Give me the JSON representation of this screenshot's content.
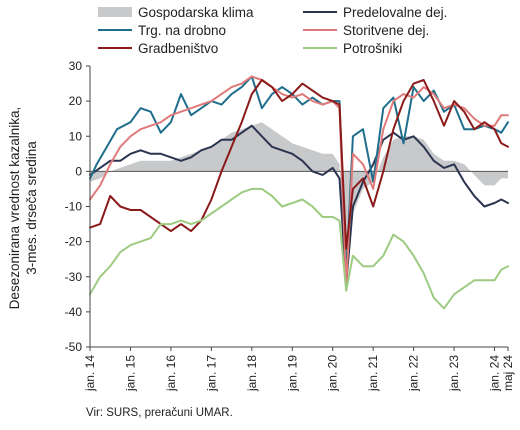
{
  "chart_data": {
    "type": "line",
    "ylabel": [
      "Desezonirana vrednost kazalnika,",
      "3-mes. drseča sredina"
    ],
    "ylim": [
      -50,
      30
    ],
    "yticks": [
      30,
      20,
      10,
      0,
      -10,
      -20,
      -30,
      -40,
      -50
    ],
    "xlim": [
      "2014-01",
      "2024-05"
    ],
    "xticks": [
      {
        "date": "2014-01",
        "label": "jan. 14"
      },
      {
        "date": "2015-01",
        "label": "jan. 15"
      },
      {
        "date": "2016-01",
        "label": "jan. 16"
      },
      {
        "date": "2017-01",
        "label": "jan. 17"
      },
      {
        "date": "2018-01",
        "label": "jan. 18"
      },
      {
        "date": "2019-01",
        "label": "jan. 19"
      },
      {
        "date": "2020-01",
        "label": "jan. 20"
      },
      {
        "date": "2021-01",
        "label": "jan. 21"
      },
      {
        "date": "2022-01",
        "label": "jan. 22"
      },
      {
        "date": "2023-01",
        "label": "jan. 23"
      },
      {
        "date": "2024-01",
        "label": "jan. 24"
      },
      {
        "date": "2024-05",
        "label": "maj 24"
      }
    ],
    "grid": false,
    "legend_position": "top",
    "source": "Vir: SURS, preračuni UMAR.",
    "series": [
      {
        "name": "Gospodarska klima",
        "kind": "area",
        "color": "#c8c9cb",
        "points": [
          [
            "2014-01",
            -3
          ],
          [
            "2014-04",
            -2
          ],
          [
            "2014-07",
            0
          ],
          [
            "2014-10",
            1
          ],
          [
            "2015-01",
            2
          ],
          [
            "2015-04",
            3
          ],
          [
            "2015-07",
            3
          ],
          [
            "2015-10",
            3
          ],
          [
            "2016-01",
            3
          ],
          [
            "2016-04",
            4
          ],
          [
            "2016-07",
            5
          ],
          [
            "2016-10",
            6
          ],
          [
            "2017-01",
            7
          ],
          [
            "2017-04",
            9
          ],
          [
            "2017-07",
            11
          ],
          [
            "2017-10",
            12
          ],
          [
            "2018-01",
            13
          ],
          [
            "2018-04",
            14
          ],
          [
            "2018-07",
            12
          ],
          [
            "2018-10",
            10
          ],
          [
            "2019-01",
            8
          ],
          [
            "2019-04",
            7
          ],
          [
            "2019-07",
            6
          ],
          [
            "2019-10",
            5
          ],
          [
            "2020-01",
            5
          ],
          [
            "2020-03",
            2
          ],
          [
            "2020-05",
            -28
          ],
          [
            "2020-07",
            -12
          ],
          [
            "2020-10",
            -5
          ],
          [
            "2021-01",
            -3
          ],
          [
            "2021-04",
            4
          ],
          [
            "2021-07",
            9
          ],
          [
            "2021-10",
            10
          ],
          [
            "2022-01",
            10
          ],
          [
            "2022-04",
            9
          ],
          [
            "2022-07",
            5
          ],
          [
            "2022-10",
            3
          ],
          [
            "2023-01",
            3
          ],
          [
            "2023-04",
            2
          ],
          [
            "2023-07",
            -1
          ],
          [
            "2023-10",
            -4
          ],
          [
            "2024-01",
            -4
          ],
          [
            "2024-03",
            -2
          ],
          [
            "2024-05",
            -2
          ]
        ]
      },
      {
        "name": "Predelovalne dej.",
        "kind": "line",
        "color": "#2b3550",
        "points": [
          [
            "2014-01",
            -1
          ],
          [
            "2014-04",
            1
          ],
          [
            "2014-07",
            3
          ],
          [
            "2014-10",
            3
          ],
          [
            "2015-01",
            5
          ],
          [
            "2015-04",
            6
          ],
          [
            "2015-07",
            5
          ],
          [
            "2015-10",
            5
          ],
          [
            "2016-01",
            4
          ],
          [
            "2016-04",
            3
          ],
          [
            "2016-07",
            4
          ],
          [
            "2016-10",
            6
          ],
          [
            "2017-01",
            7
          ],
          [
            "2017-04",
            9
          ],
          [
            "2017-07",
            9
          ],
          [
            "2017-10",
            11
          ],
          [
            "2018-01",
            13
          ],
          [
            "2018-04",
            10
          ],
          [
            "2018-07",
            7
          ],
          [
            "2018-10",
            6
          ],
          [
            "2019-01",
            5
          ],
          [
            "2019-04",
            3
          ],
          [
            "2019-07",
            0
          ],
          [
            "2019-10",
            -1
          ],
          [
            "2020-01",
            1
          ],
          [
            "2020-03",
            -2
          ],
          [
            "2020-05",
            -32
          ],
          [
            "2020-07",
            -10
          ],
          [
            "2020-10",
            -3
          ],
          [
            "2021-01",
            2
          ],
          [
            "2021-04",
            9
          ],
          [
            "2021-07",
            11
          ],
          [
            "2021-10",
            9
          ],
          [
            "2022-01",
            10
          ],
          [
            "2022-04",
            7
          ],
          [
            "2022-07",
            3
          ],
          [
            "2022-10",
            1
          ],
          [
            "2023-01",
            2
          ],
          [
            "2023-04",
            -3
          ],
          [
            "2023-07",
            -7
          ],
          [
            "2023-10",
            -10
          ],
          [
            "2024-01",
            -9
          ],
          [
            "2024-03",
            -8
          ],
          [
            "2024-05",
            -9
          ]
        ]
      },
      {
        "name": "Trg. na drobno",
        "kind": "line",
        "color": "#1f6e8c",
        "points": [
          [
            "2014-01",
            -2
          ],
          [
            "2014-03",
            2
          ],
          [
            "2014-06",
            7
          ],
          [
            "2014-09",
            12
          ],
          [
            "2015-01",
            14
          ],
          [
            "2015-04",
            18
          ],
          [
            "2015-07",
            17
          ],
          [
            "2015-10",
            11
          ],
          [
            "2016-01",
            14
          ],
          [
            "2016-04",
            22
          ],
          [
            "2016-07",
            16
          ],
          [
            "2016-10",
            18
          ],
          [
            "2017-01",
            20
          ],
          [
            "2017-04",
            19
          ],
          [
            "2017-07",
            22
          ],
          [
            "2017-10",
            24
          ],
          [
            "2018-01",
            27
          ],
          [
            "2018-04",
            18
          ],
          [
            "2018-07",
            22
          ],
          [
            "2018-10",
            24
          ],
          [
            "2019-01",
            22
          ],
          [
            "2019-04",
            19
          ],
          [
            "2019-07",
            21
          ],
          [
            "2019-10",
            19
          ],
          [
            "2020-01",
            20
          ],
          [
            "2020-03",
            20
          ],
          [
            "2020-05",
            -30
          ],
          [
            "2020-07",
            10
          ],
          [
            "2020-10",
            12
          ],
          [
            "2021-01",
            -3
          ],
          [
            "2021-04",
            18
          ],
          [
            "2021-07",
            21
          ],
          [
            "2021-10",
            8
          ],
          [
            "2022-01",
            24
          ],
          [
            "2022-04",
            20
          ],
          [
            "2022-07",
            23
          ],
          [
            "2022-10",
            17
          ],
          [
            "2023-01",
            19
          ],
          [
            "2023-04",
            12
          ],
          [
            "2023-07",
            12
          ],
          [
            "2023-10",
            13
          ],
          [
            "2024-01",
            12
          ],
          [
            "2024-03",
            11
          ],
          [
            "2024-05",
            14
          ]
        ]
      },
      {
        "name": "Storitvene dej.",
        "kind": "line",
        "color": "#e07a7a",
        "points": [
          [
            "2014-01",
            -8
          ],
          [
            "2014-04",
            -4
          ],
          [
            "2014-07",
            2
          ],
          [
            "2014-10",
            7
          ],
          [
            "2015-01",
            10
          ],
          [
            "2015-04",
            12
          ],
          [
            "2015-07",
            13
          ],
          [
            "2015-10",
            14
          ],
          [
            "2016-01",
            16
          ],
          [
            "2016-04",
            17
          ],
          [
            "2016-07",
            18
          ],
          [
            "2016-10",
            19
          ],
          [
            "2017-01",
            20
          ],
          [
            "2017-04",
            22
          ],
          [
            "2017-07",
            24
          ],
          [
            "2017-10",
            25
          ],
          [
            "2018-01",
            27
          ],
          [
            "2018-04",
            26
          ],
          [
            "2018-07",
            24
          ],
          [
            "2018-10",
            22
          ],
          [
            "2019-01",
            21
          ],
          [
            "2019-04",
            22
          ],
          [
            "2019-07",
            20
          ],
          [
            "2019-10",
            19
          ],
          [
            "2020-01",
            20
          ],
          [
            "2020-03",
            18
          ],
          [
            "2020-05",
            -33
          ],
          [
            "2020-07",
            5
          ],
          [
            "2020-10",
            2
          ],
          [
            "2021-01",
            -5
          ],
          [
            "2021-04",
            12
          ],
          [
            "2021-07",
            20
          ],
          [
            "2021-10",
            22
          ],
          [
            "2022-01",
            21
          ],
          [
            "2022-04",
            24
          ],
          [
            "2022-07",
            22
          ],
          [
            "2022-10",
            18
          ],
          [
            "2023-01",
            19
          ],
          [
            "2023-04",
            18
          ],
          [
            "2023-07",
            15
          ],
          [
            "2023-10",
            13
          ],
          [
            "2024-01",
            13
          ],
          [
            "2024-03",
            16
          ],
          [
            "2024-05",
            16
          ]
        ]
      },
      {
        "name": "Gradbeništvo",
        "kind": "line",
        "color": "#8b1a1a",
        "points": [
          [
            "2014-01",
            -16
          ],
          [
            "2014-04",
            -15
          ],
          [
            "2014-07",
            -7
          ],
          [
            "2014-10",
            -10
          ],
          [
            "2015-01",
            -11
          ],
          [
            "2015-04",
            -11
          ],
          [
            "2015-07",
            -13
          ],
          [
            "2015-10",
            -15
          ],
          [
            "2016-01",
            -17
          ],
          [
            "2016-04",
            -15
          ],
          [
            "2016-07",
            -17
          ],
          [
            "2016-10",
            -14
          ],
          [
            "2017-01",
            -8
          ],
          [
            "2017-04",
            0
          ],
          [
            "2017-07",
            7
          ],
          [
            "2017-10",
            14
          ],
          [
            "2018-01",
            22
          ],
          [
            "2018-04",
            26
          ],
          [
            "2018-07",
            24
          ],
          [
            "2018-10",
            20
          ],
          [
            "2019-01",
            22
          ],
          [
            "2019-04",
            25
          ],
          [
            "2019-07",
            23
          ],
          [
            "2019-10",
            21
          ],
          [
            "2020-01",
            20
          ],
          [
            "2020-03",
            19
          ],
          [
            "2020-05",
            -22
          ],
          [
            "2020-07",
            -5
          ],
          [
            "2020-10",
            -2
          ],
          [
            "2021-01",
            -10
          ],
          [
            "2021-04",
            0
          ],
          [
            "2021-07",
            12
          ],
          [
            "2021-10",
            20
          ],
          [
            "2022-01",
            25
          ],
          [
            "2022-04",
            26
          ],
          [
            "2022-07",
            20
          ],
          [
            "2022-10",
            13
          ],
          [
            "2023-01",
            20
          ],
          [
            "2023-04",
            17
          ],
          [
            "2023-07",
            12
          ],
          [
            "2023-10",
            14
          ],
          [
            "2024-01",
            12
          ],
          [
            "2024-03",
            8
          ],
          [
            "2024-05",
            7
          ]
        ]
      },
      {
        "name": "Potrošniki",
        "kind": "line",
        "color": "#9dcb82",
        "points": [
          [
            "2014-01",
            -35
          ],
          [
            "2014-04",
            -30
          ],
          [
            "2014-07",
            -27
          ],
          [
            "2014-10",
            -23
          ],
          [
            "2015-01",
            -21
          ],
          [
            "2015-04",
            -20
          ],
          [
            "2015-07",
            -19
          ],
          [
            "2015-10",
            -15
          ],
          [
            "2016-01",
            -15
          ],
          [
            "2016-04",
            -14
          ],
          [
            "2016-07",
            -15
          ],
          [
            "2016-10",
            -14
          ],
          [
            "2017-01",
            -12
          ],
          [
            "2017-04",
            -10
          ],
          [
            "2017-07",
            -8
          ],
          [
            "2017-10",
            -6
          ],
          [
            "2018-01",
            -5
          ],
          [
            "2018-04",
            -5
          ],
          [
            "2018-07",
            -7
          ],
          [
            "2018-10",
            -10
          ],
          [
            "2019-01",
            -9
          ],
          [
            "2019-04",
            -8
          ],
          [
            "2019-07",
            -10
          ],
          [
            "2019-10",
            -13
          ],
          [
            "2020-01",
            -13
          ],
          [
            "2020-03",
            -14
          ],
          [
            "2020-05",
            -34
          ],
          [
            "2020-07",
            -24
          ],
          [
            "2020-10",
            -27
          ],
          [
            "2021-01",
            -27
          ],
          [
            "2021-04",
            -24
          ],
          [
            "2021-07",
            -18
          ],
          [
            "2021-10",
            -20
          ],
          [
            "2022-01",
            -24
          ],
          [
            "2022-04",
            -29
          ],
          [
            "2022-07",
            -36
          ],
          [
            "2022-10",
            -39
          ],
          [
            "2023-01",
            -35
          ],
          [
            "2023-04",
            -33
          ],
          [
            "2023-07",
            -31
          ],
          [
            "2023-10",
            -31
          ],
          [
            "2024-01",
            -31
          ],
          [
            "2024-03",
            -28
          ],
          [
            "2024-05",
            -27
          ]
        ]
      }
    ]
  }
}
